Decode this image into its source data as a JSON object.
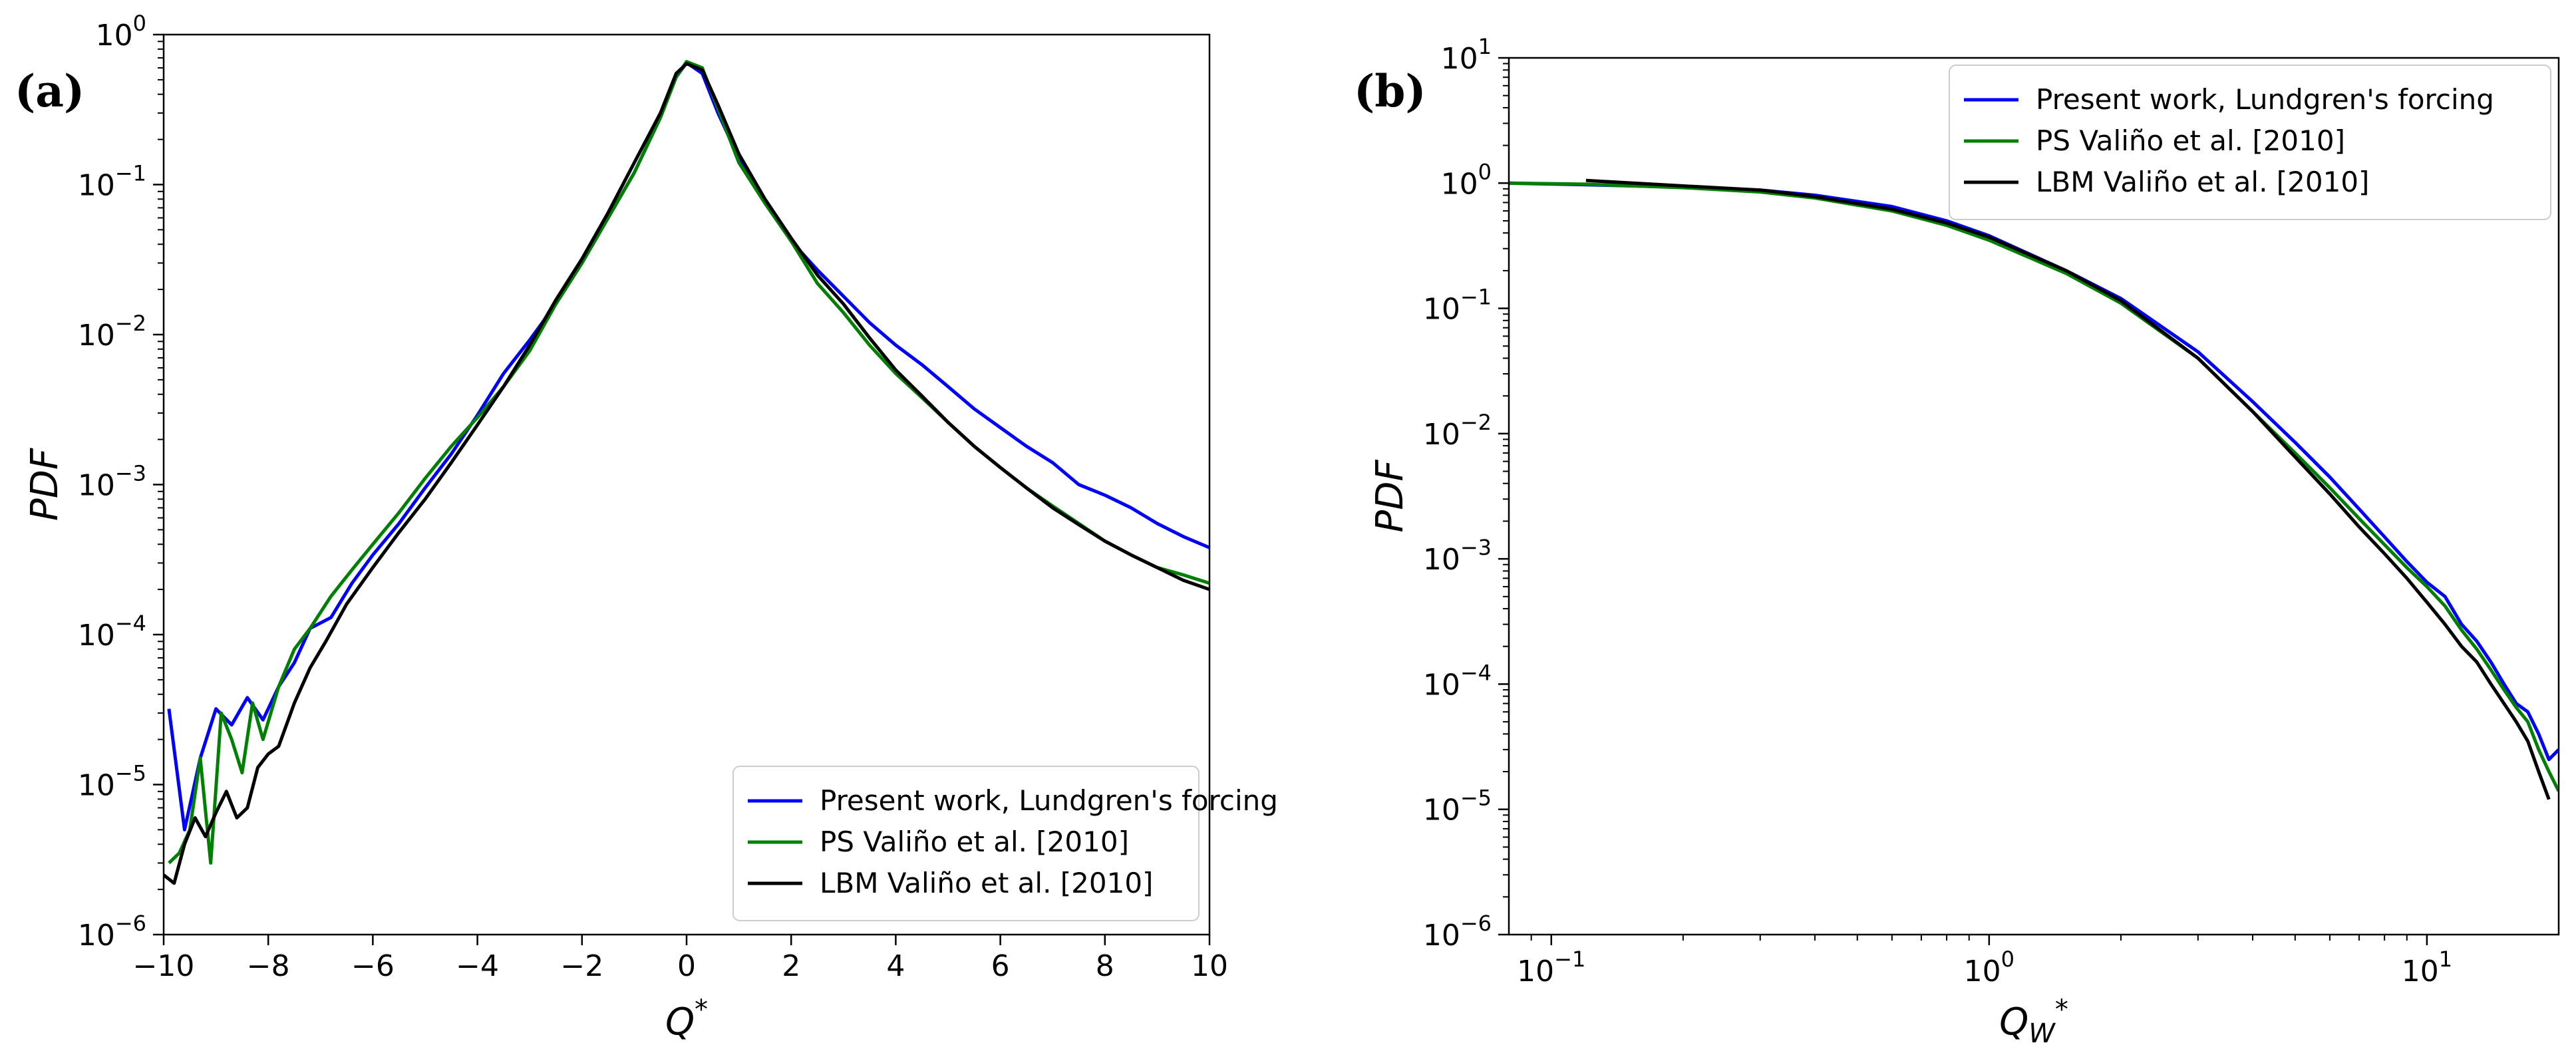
{
  "chart_data": [
    {
      "panel_label": "(a)",
      "type": "line",
      "xlabel_main": "Q",
      "xlabel_sup": "*",
      "ylabel": "PDF",
      "xscale": "linear",
      "yscale": "log",
      "xlim": [
        -10,
        10
      ],
      "ylim": [
        1e-06,
        1
      ],
      "xticks": [
        -10,
        -8,
        -6,
        -4,
        -2,
        0,
        2,
        4,
        6,
        8,
        10
      ],
      "xtick_labels": [
        "−10",
        "−8",
        "−6",
        "−4",
        "−2",
        "0",
        "2",
        "4",
        "6",
        "8",
        "10"
      ],
      "yticks": [
        {
          "mant": "10",
          "exp": "−6"
        },
        {
          "mant": "10",
          "exp": "−5"
        },
        {
          "mant": "10",
          "exp": "−4"
        },
        {
          "mant": "10",
          "exp": "−3"
        },
        {
          "mant": "10",
          "exp": "−2"
        },
        {
          "mant": "10",
          "exp": "−1"
        },
        {
          "mant": "10",
          "exp": "0"
        }
      ],
      "legend_position": "lower-right",
      "series": [
        {
          "name": "Present work, Lundgren's forcing",
          "color": "#0000ff",
          "x": [
            -9.9,
            -9.6,
            -9.3,
            -9.0,
            -8.7,
            -8.4,
            -8.1,
            -7.8,
            -7.5,
            -7.2,
            -6.8,
            -6.4,
            -6.0,
            -5.5,
            -5.0,
            -4.5,
            -4.0,
            -3.5,
            -3.0,
            -2.5,
            -2.0,
            -1.5,
            -1.0,
            -0.5,
            -0.2,
            0.0,
            0.3,
            0.6,
            1.0,
            1.5,
            2.0,
            2.5,
            3.0,
            3.5,
            4.0,
            4.5,
            5.0,
            5.5,
            6.0,
            6.5,
            7.0,
            7.5,
            8.0,
            8.5,
            9.0,
            9.5,
            10.0
          ],
          "y": [
            3.2e-05,
            5e-06,
            1.5e-05,
            3.2e-05,
            2.5e-05,
            3.8e-05,
            2.7e-05,
            4.5e-05,
            6.5e-05,
            0.00011,
            0.00013,
            0.00022,
            0.00034,
            0.00055,
            0.00095,
            0.0016,
            0.0029,
            0.0055,
            0.0092,
            0.016,
            0.03,
            0.06,
            0.12,
            0.28,
            0.52,
            0.65,
            0.55,
            0.3,
            0.15,
            0.078,
            0.042,
            0.027,
            0.018,
            0.012,
            0.0085,
            0.0063,
            0.0045,
            0.0032,
            0.0024,
            0.0018,
            0.0014,
            0.001,
            0.00085,
            0.0007,
            0.00055,
            0.00045,
            0.00038
          ]
        },
        {
          "name": "PS Valiño et al. [2010]",
          "color": "#008000",
          "x": [
            -9.9,
            -9.7,
            -9.5,
            -9.3,
            -9.1,
            -8.9,
            -8.7,
            -8.5,
            -8.3,
            -8.1,
            -7.8,
            -7.5,
            -7.2,
            -6.8,
            -6.4,
            -6.0,
            -5.5,
            -5.0,
            -4.5,
            -4.0,
            -3.5,
            -3.0,
            -2.5,
            -2.0,
            -1.5,
            -1.0,
            -0.5,
            -0.2,
            0.0,
            0.3,
            0.6,
            1.0,
            1.5,
            2.0,
            2.5,
            3.0,
            3.5,
            4.0,
            4.5,
            5.0,
            5.5,
            6.0,
            6.5,
            7.0,
            7.5,
            8.0,
            8.5,
            9.0,
            9.5,
            10.0
          ],
          "y": [
            3e-06,
            3.5e-06,
            5e-06,
            1.5e-05,
            3e-06,
            3e-05,
            2e-05,
            1.2e-05,
            3.5e-05,
            2e-05,
            4.5e-05,
            8e-05,
            0.00011,
            0.00018,
            0.00027,
            0.0004,
            0.00065,
            0.0011,
            0.0018,
            0.0028,
            0.0045,
            0.0078,
            0.016,
            0.03,
            0.06,
            0.12,
            0.28,
            0.52,
            0.66,
            0.6,
            0.32,
            0.14,
            0.075,
            0.042,
            0.022,
            0.014,
            0.0085,
            0.0055,
            0.0038,
            0.0026,
            0.0018,
            0.0013,
            0.00095,
            0.00072,
            0.00055,
            0.00042,
            0.00034,
            0.00028,
            0.00025,
            0.00022
          ]
        },
        {
          "name": "LBM Valiño et al. [2010]",
          "color": "#000000",
          "x": [
            -10.0,
            -9.8,
            -9.6,
            -9.4,
            -9.2,
            -9.0,
            -8.8,
            -8.6,
            -8.4,
            -8.2,
            -8.0,
            -7.8,
            -7.5,
            -7.2,
            -6.9,
            -6.5,
            -6.0,
            -5.5,
            -5.0,
            -4.5,
            -4.0,
            -3.5,
            -3.0,
            -2.5,
            -2.0,
            -1.5,
            -1.0,
            -0.5,
            -0.2,
            0.0,
            0.3,
            0.6,
            1.0,
            1.5,
            2.0,
            2.5,
            3.0,
            3.5,
            4.0,
            4.5,
            5.0,
            5.5,
            6.0,
            6.5,
            7.0,
            7.5,
            8.0,
            8.5,
            9.0,
            9.5,
            10.0
          ],
          "y": [
            2.5e-06,
            2.2e-06,
            4e-06,
            6e-06,
            4.5e-06,
            6.5e-06,
            9e-06,
            6e-06,
            7e-06,
            1.3e-05,
            1.6e-05,
            1.8e-05,
            3.5e-05,
            6e-05,
            9e-05,
            0.00016,
            0.00028,
            0.00048,
            0.0008,
            0.0014,
            0.0025,
            0.0045,
            0.0085,
            0.017,
            0.032,
            0.065,
            0.14,
            0.3,
            0.55,
            0.64,
            0.58,
            0.34,
            0.16,
            0.08,
            0.044,
            0.025,
            0.016,
            0.0095,
            0.0058,
            0.0039,
            0.0026,
            0.0018,
            0.0013,
            0.00095,
            0.0007,
            0.00054,
            0.00042,
            0.00034,
            0.00028,
            0.00023,
            0.0002
          ]
        }
      ]
    },
    {
      "panel_label": "(b)",
      "type": "line",
      "xlabel_main": "Q",
      "xlabel_sub": "W",
      "xlabel_sup": "*",
      "ylabel": "PDF",
      "xscale": "log",
      "yscale": "log",
      "xlim": [
        0.08,
        20
      ],
      "ylim": [
        1e-06,
        10
      ],
      "xticks": [
        {
          "mant": "10",
          "exp": "−1"
        },
        {
          "mant": "10",
          "exp": "0"
        },
        {
          "mant": "10",
          "exp": "1"
        }
      ],
      "yticks": [
        {
          "mant": "10",
          "exp": "−6"
        },
        {
          "mant": "10",
          "exp": "−5"
        },
        {
          "mant": "10",
          "exp": "−4"
        },
        {
          "mant": "10",
          "exp": "−3"
        },
        {
          "mant": "10",
          "exp": "−2"
        },
        {
          "mant": "10",
          "exp": "−1"
        },
        {
          "mant": "10",
          "exp": "0"
        },
        {
          "mant": "10",
          "exp": "1"
        }
      ],
      "legend_position": "upper-right",
      "series": [
        {
          "name": "Present work, Lundgren's forcing",
          "color": "#0000ff",
          "x": [
            0.08,
            0.12,
            0.2,
            0.3,
            0.4,
            0.6,
            0.8,
            1.0,
            1.5,
            2.0,
            3.0,
            4.0,
            5.0,
            6.0,
            7.0,
            8.0,
            9.0,
            10.0,
            11.0,
            12.0,
            13.0,
            14.0,
            15.0,
            16.0,
            17.0,
            18.0,
            19.0,
            20.0
          ],
          "y": [
            1.0,
            0.97,
            0.93,
            0.88,
            0.8,
            0.65,
            0.5,
            0.38,
            0.2,
            0.12,
            0.045,
            0.018,
            0.0085,
            0.0045,
            0.0025,
            0.0015,
            0.00095,
            0.00065,
            0.0005,
            0.0003,
            0.00022,
            0.00015,
            0.0001,
            7e-05,
            6e-05,
            4e-05,
            2.5e-05,
            3e-05
          ]
        },
        {
          "name": "PS Valiño et al. [2010]",
          "color": "#008000",
          "x": [
            0.08,
            0.12,
            0.2,
            0.3,
            0.4,
            0.6,
            0.8,
            1.0,
            1.5,
            2.0,
            3.0,
            4.0,
            5.0,
            6.0,
            7.0,
            8.0,
            9.0,
            10.0,
            11.0,
            12.0,
            13.0,
            14.0,
            15.0,
            16.0,
            17.0,
            18.0,
            19.0,
            20.0
          ],
          "y": [
            1.0,
            0.98,
            0.92,
            0.85,
            0.76,
            0.6,
            0.46,
            0.35,
            0.19,
            0.11,
            0.04,
            0.015,
            0.007,
            0.0037,
            0.0021,
            0.0013,
            0.00085,
            0.0006,
            0.00042,
            0.00027,
            0.00019,
            0.00013,
            9e-05,
            6.5e-05,
            5e-05,
            3e-05,
            2e-05,
            1.4e-05
          ]
        },
        {
          "name": "LBM Valiño et al. [2010]",
          "color": "#000000",
          "x": [
            0.12,
            0.2,
            0.3,
            0.4,
            0.6,
            0.8,
            1.0,
            1.5,
            2.0,
            3.0,
            4.0,
            5.0,
            6.0,
            7.0,
            8.0,
            9.0,
            10.0,
            11.0,
            12.0,
            13.0,
            14.0,
            15.0,
            16.0,
            17.0,
            18.0,
            19.0
          ],
          "y": [
            1.05,
            0.95,
            0.88,
            0.78,
            0.62,
            0.48,
            0.37,
            0.2,
            0.115,
            0.04,
            0.015,
            0.0065,
            0.0033,
            0.0018,
            0.0011,
            0.0007,
            0.00045,
            0.0003,
            0.0002,
            0.00015,
            0.0001,
            7e-05,
            5e-05,
            3.5e-05,
            2e-05,
            1.2e-05
          ]
        }
      ]
    }
  ]
}
